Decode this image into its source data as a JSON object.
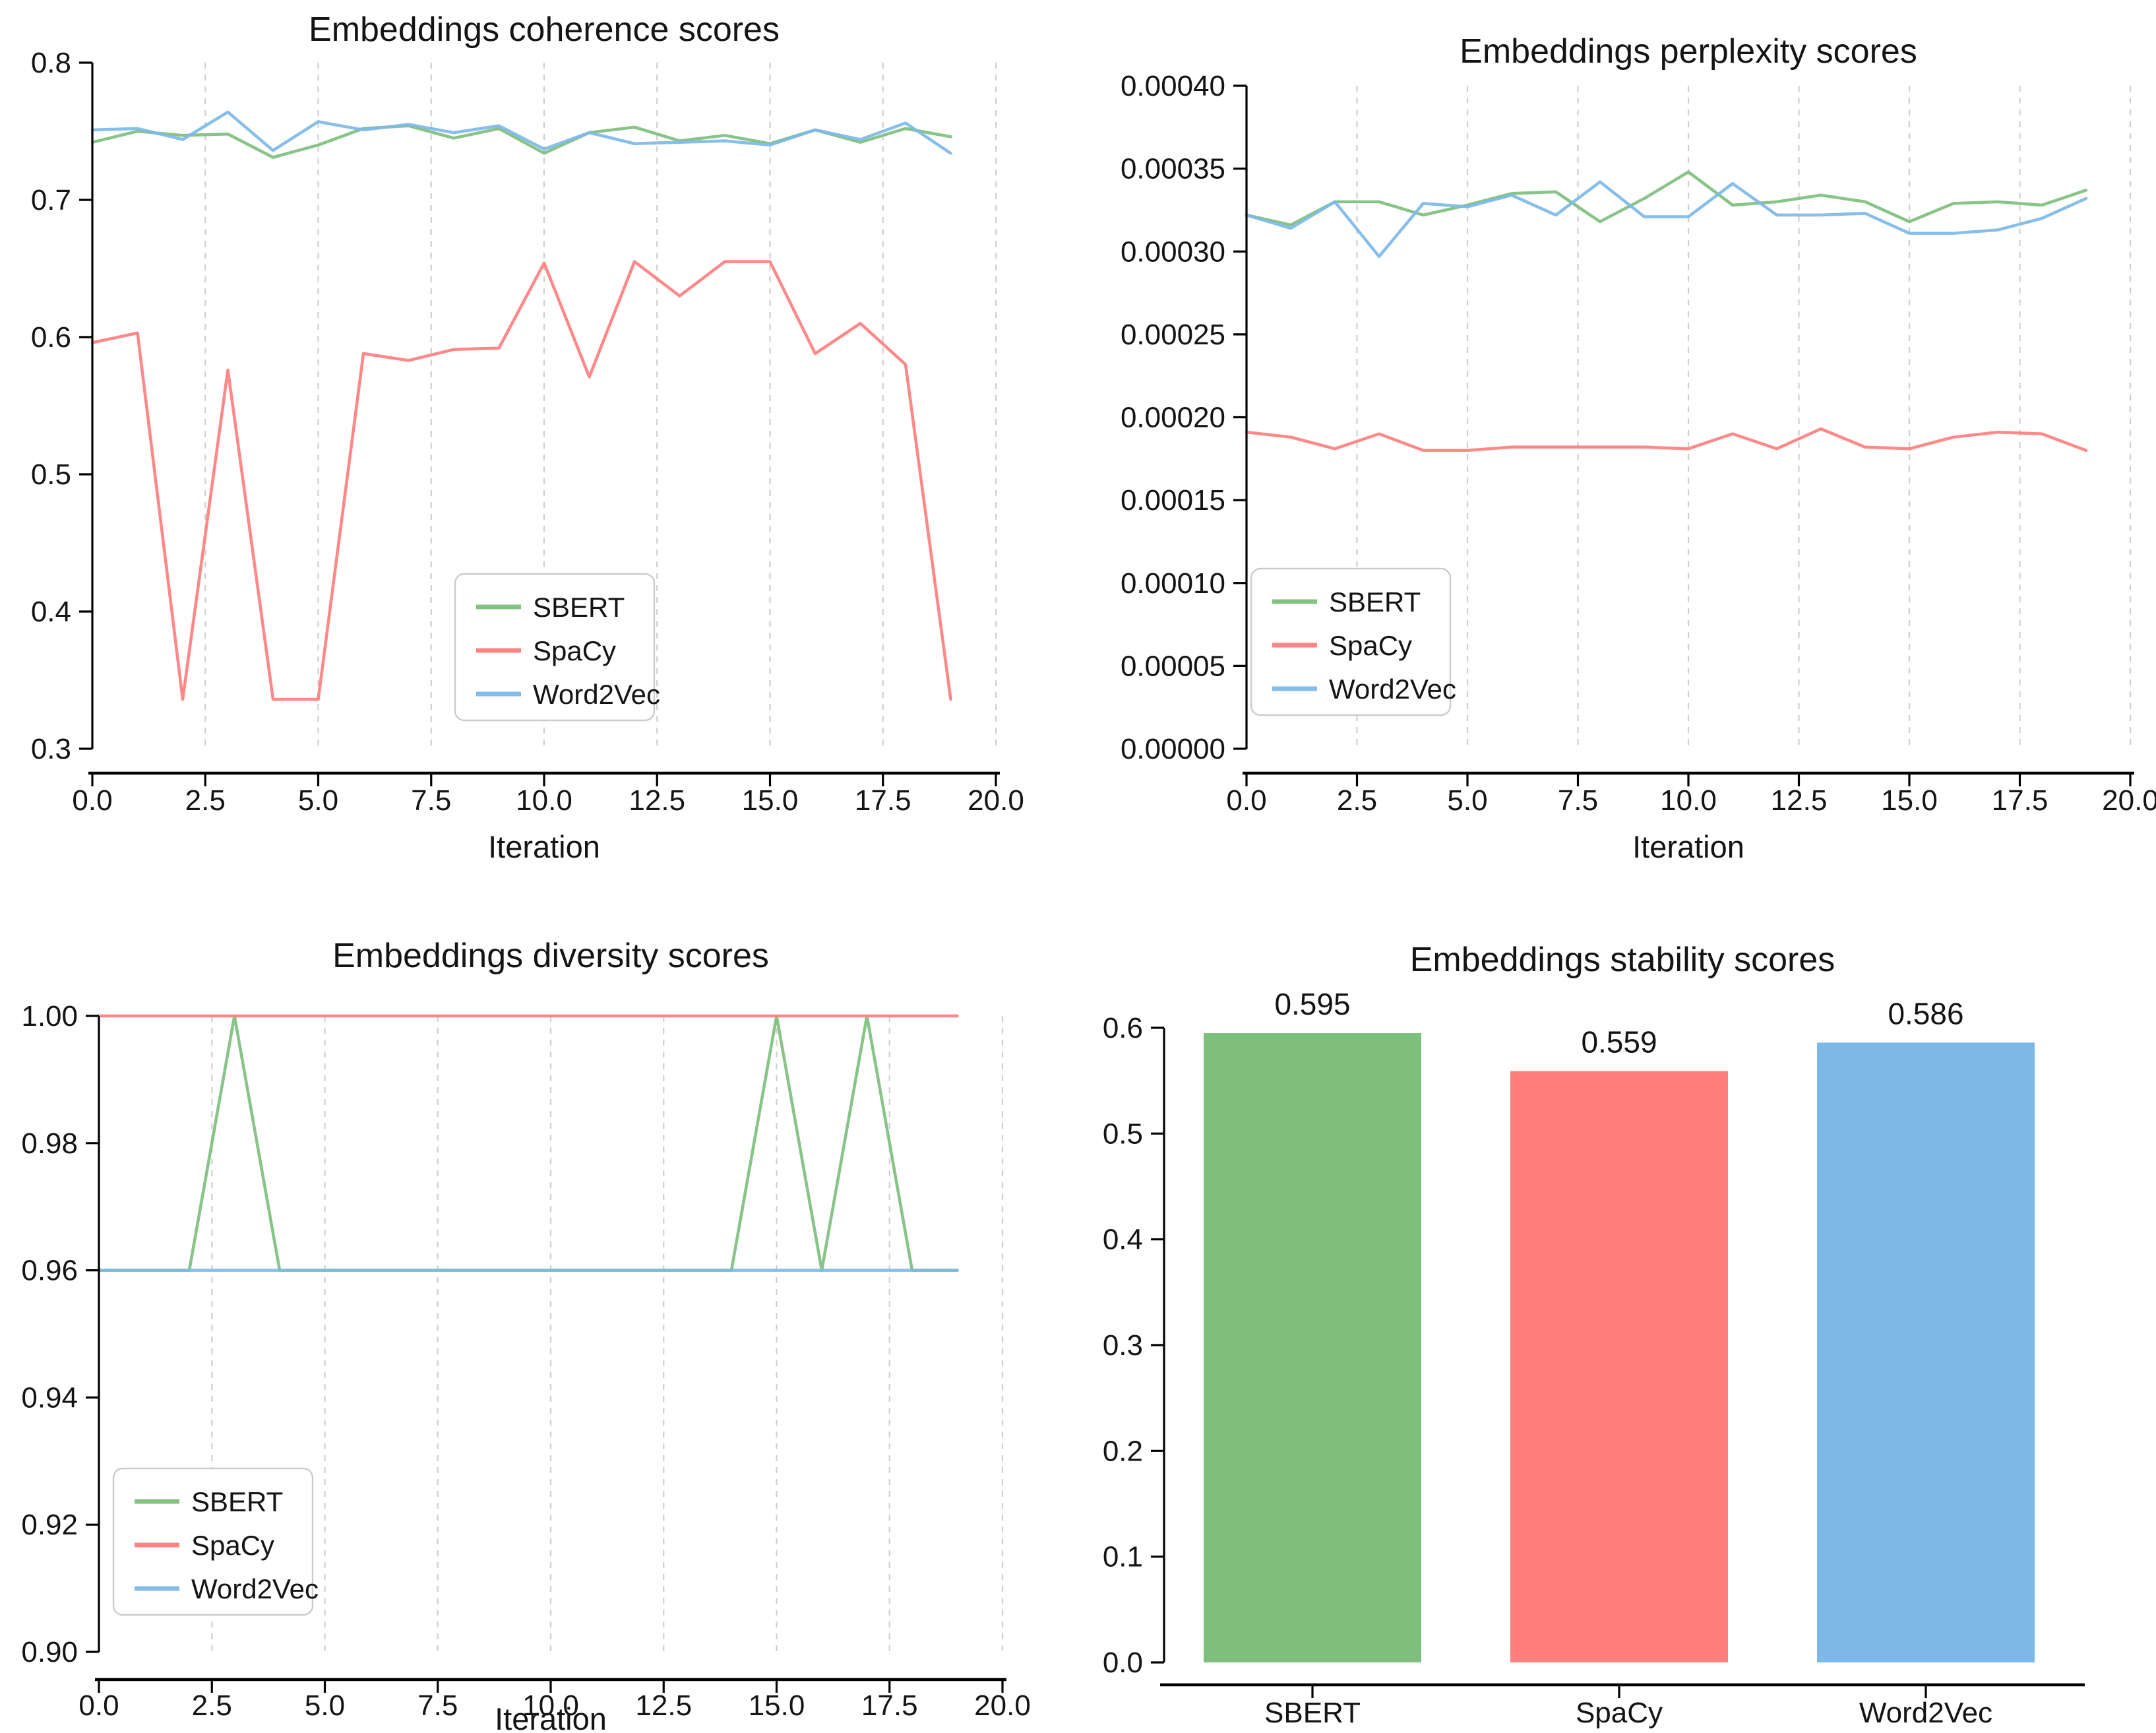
{
  "figure": {
    "background": "#ffffff"
  },
  "colors": {
    "sbert": "#7ebf7e",
    "spacy": "#ff7f7e",
    "word2vec": "#7db9e8",
    "axis": "#000000",
    "grid": "#cfcfcf",
    "text": "#141414",
    "legend_border": "#cccccc",
    "legend_background": "#ffffff"
  },
  "chart_data": [
    {
      "id": "coherence",
      "type": "line",
      "title": "Embeddings coherence scores",
      "xlabel": "Iteration",
      "xlim": [
        0,
        20
      ],
      "ylim": [
        0.3,
        0.8
      ],
      "grid": "vertical-dashed",
      "legend_loc": "lower center",
      "x_ticks": [
        0,
        2.5,
        5,
        7.5,
        10,
        12.5,
        15,
        17.5,
        20
      ],
      "x_tick_labels": [
        "0.0",
        "2.5",
        "5.0",
        "7.5",
        "10.0",
        "12.5",
        "15.0",
        "17.5",
        "20.0"
      ],
      "y_ticks": [
        0.3,
        0.4,
        0.5,
        0.6,
        0.7,
        0.8
      ],
      "y_tick_labels": [
        "0.3",
        "0.4",
        "0.5",
        "0.6",
        "0.7",
        "0.8"
      ],
      "x": [
        0,
        1,
        2,
        3,
        4,
        5,
        6,
        7,
        8,
        9,
        10,
        11,
        12,
        13,
        14,
        15,
        16,
        17,
        18,
        19
      ],
      "series": [
        {
          "name": "SBERT",
          "color": "#7ebf7e",
          "values": [
            0.742,
            0.75,
            0.747,
            0.748,
            0.731,
            0.74,
            0.752,
            0.754,
            0.745,
            0.752,
            0.734,
            0.749,
            0.753,
            0.743,
            0.747,
            0.741,
            0.751,
            0.742,
            0.752,
            0.746
          ]
        },
        {
          "name": "SpaCy",
          "color": "#ff7f7e",
          "values": [
            0.596,
            0.603,
            0.336,
            0.576,
            0.336,
            0.336,
            0.588,
            0.583,
            0.591,
            0.592,
            0.654,
            0.571,
            0.655,
            0.63,
            0.655,
            0.655,
            0.588,
            0.61,
            0.58,
            0.336
          ]
        },
        {
          "name": "Word2Vec",
          "color": "#7db9e8",
          "values": [
            0.751,
            0.752,
            0.744,
            0.764,
            0.736,
            0.757,
            0.751,
            0.755,
            0.749,
            0.754,
            0.737,
            0.749,
            0.741,
            0.742,
            0.743,
            0.74,
            0.751,
            0.744,
            0.756,
            0.734
          ]
        }
      ]
    },
    {
      "id": "perplexity",
      "type": "line",
      "title": "Embeddings perplexity scores",
      "xlabel": "Iteration",
      "xlim": [
        0,
        20
      ],
      "ylim": [
        0.0,
        0.0004
      ],
      "grid": "vertical-dashed",
      "legend_loc": "lower left",
      "x_ticks": [
        0,
        2.5,
        5,
        7.5,
        10,
        12.5,
        15,
        17.5,
        20
      ],
      "x_tick_labels": [
        "0.0",
        "2.5",
        "5.0",
        "7.5",
        "10.0",
        "12.5",
        "15.0",
        "17.5",
        "20.0"
      ],
      "y_ticks": [
        0.0,
        5e-05,
        0.0001,
        0.00015,
        0.0002,
        0.00025,
        0.0003,
        0.00035,
        0.0004
      ],
      "y_tick_labels": [
        "0.00000",
        "0.00005",
        "0.00010",
        "0.00015",
        "0.00020",
        "0.00025",
        "0.00030",
        "0.00035",
        "0.00040"
      ],
      "x": [
        0,
        1,
        2,
        3,
        4,
        5,
        6,
        7,
        8,
        9,
        10,
        11,
        12,
        13,
        14,
        15,
        16,
        17,
        18,
        19
      ],
      "series": [
        {
          "name": "SBERT",
          "color": "#7ebf7e",
          "values": [
            0.000322,
            0.000316,
            0.00033,
            0.00033,
            0.000322,
            0.000328,
            0.000335,
            0.000336,
            0.000318,
            0.000332,
            0.000348,
            0.000328,
            0.00033,
            0.000334,
            0.00033,
            0.000318,
            0.000329,
            0.00033,
            0.000328,
            0.000337
          ]
        },
        {
          "name": "SpaCy",
          "color": "#ff7f7e",
          "values": [
            0.000191,
            0.000188,
            0.000181,
            0.00019,
            0.00018,
            0.00018,
            0.000182,
            0.000182,
            0.000182,
            0.000182,
            0.000181,
            0.00019,
            0.000181,
            0.000193,
            0.000182,
            0.000181,
            0.000188,
            0.000191,
            0.00019,
            0.00018
          ]
        },
        {
          "name": "Word2Vec",
          "color": "#7db9e8",
          "values": [
            0.000322,
            0.000314,
            0.00033,
            0.000297,
            0.000329,
            0.000327,
            0.000334,
            0.000322,
            0.000342,
            0.000321,
            0.000321,
            0.000341,
            0.000322,
            0.000322,
            0.000323,
            0.000311,
            0.000311,
            0.000313,
            0.00032,
            0.000332
          ]
        }
      ]
    },
    {
      "id": "diversity",
      "type": "line",
      "title": "Embeddings diversity scores",
      "xlabel": "Iteration",
      "xlim": [
        0,
        20
      ],
      "ylim": [
        0.9,
        1.0
      ],
      "grid": "vertical-dashed",
      "legend_loc": "lower left",
      "x_ticks": [
        0,
        2.5,
        5,
        7.5,
        10,
        12.5,
        15,
        17.5,
        20
      ],
      "x_tick_labels": [
        "0.0",
        "2.5",
        "5.0",
        "7.5",
        "10.0",
        "12.5",
        "15.0",
        "17.5",
        "20.0"
      ],
      "y_ticks": [
        0.9,
        0.92,
        0.94,
        0.96,
        0.98,
        1.0
      ],
      "y_tick_labels": [
        "0.90",
        "0.92",
        "0.94",
        "0.96",
        "0.98",
        "1.00"
      ],
      "x": [
        0,
        1,
        2,
        3,
        4,
        5,
        6,
        7,
        8,
        9,
        10,
        11,
        12,
        13,
        14,
        15,
        16,
        17,
        18,
        19
      ],
      "series": [
        {
          "name": "SBERT",
          "color": "#7ebf7e",
          "values": [
            0.96,
            0.96,
            0.96,
            1.0,
            0.96,
            0.96,
            0.96,
            0.96,
            0.96,
            0.96,
            0.96,
            0.96,
            0.96,
            0.96,
            0.96,
            1.0,
            0.96,
            1.0,
            0.96,
            0.96
          ]
        },
        {
          "name": "SpaCy",
          "color": "#ff7f7e",
          "values": [
            1.0,
            1.0,
            1.0,
            1.0,
            1.0,
            1.0,
            1.0,
            1.0,
            1.0,
            1.0,
            1.0,
            1.0,
            1.0,
            1.0,
            1.0,
            1.0,
            1.0,
            1.0,
            1.0,
            1.0
          ]
        },
        {
          "name": "Word2Vec",
          "color": "#7db9e8",
          "values": [
            0.96,
            0.96,
            0.96,
            0.96,
            0.96,
            0.96,
            0.96,
            0.96,
            0.96,
            0.96,
            0.96,
            0.96,
            0.96,
            0.96,
            0.96,
            0.96,
            0.96,
            0.96,
            0.96,
            0.96
          ]
        }
      ]
    },
    {
      "id": "stability",
      "type": "bar",
      "title": "Embeddings stability scores",
      "xlabel": "",
      "ylim": [
        0.0,
        0.6
      ],
      "grid": "off",
      "categories": [
        "SBERT",
        "SpaCy",
        "Word2Vec"
      ],
      "values": [
        0.595,
        0.559,
        0.586
      ],
      "value_labels": [
        "0.595",
        "0.559",
        "0.586"
      ],
      "bar_colors": [
        "#7ebf7e",
        "#ff7f7e",
        "#7db9e8"
      ],
      "y_ticks": [
        0.0,
        0.1,
        0.2,
        0.3,
        0.4,
        0.5,
        0.6
      ],
      "y_tick_labels": [
        "0.0",
        "0.1",
        "0.2",
        "0.3",
        "0.4",
        "0.5",
        "0.6"
      ]
    }
  ]
}
